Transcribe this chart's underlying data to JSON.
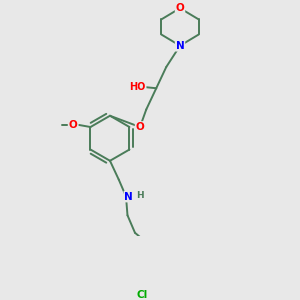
{
  "background_color": "#e8e8e8",
  "bond_color": "#4a7c59",
  "atom_colors": {
    "O": "#ff0000",
    "N": "#0000ff",
    "Cl": "#00aa00",
    "C": "#4a7c59"
  },
  "figsize": [
    3.0,
    3.0
  ],
  "dpi": 100,
  "lw": 1.4,
  "fontsize": 7.5
}
